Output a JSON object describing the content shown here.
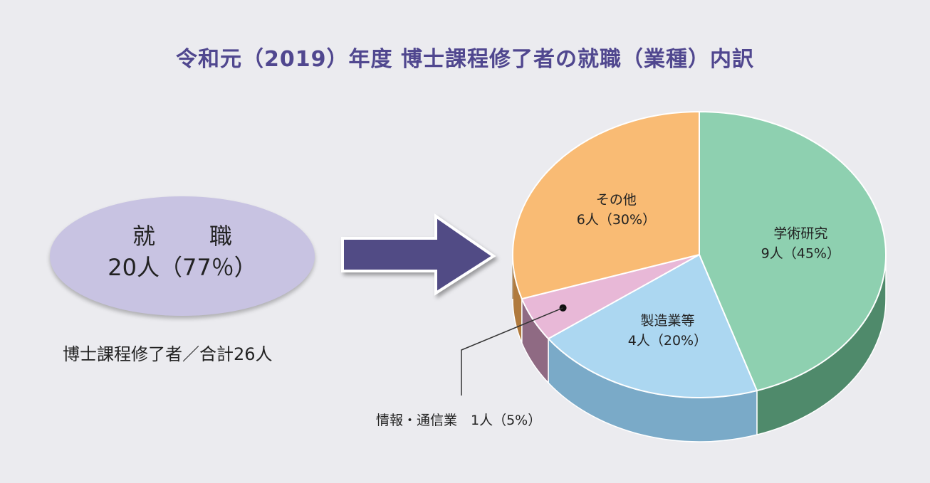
{
  "title": "令和元（2019）年度 博士課程修了者の就職（業種）内訳",
  "employment": {
    "label": "就　職",
    "value": "20人（77％）"
  },
  "total_caption": "博士課程修了者／合計26人",
  "colors": {
    "background": "#ebebef",
    "title": "#50478f",
    "ellipse": "#c8c3e2",
    "arrow": "#514b85"
  },
  "chart_data": {
    "type": "pie",
    "style": "3d",
    "slices": [
      {
        "name": "学術研究",
        "count": 9,
        "percent": 45,
        "label": "9人（45%）",
        "color": "#8ed0b0",
        "side_color": "#4f8a6b"
      },
      {
        "name": "製造業等",
        "count": 4,
        "percent": 20,
        "label": "4人（20%）",
        "color": "#acd7f1",
        "side_color": "#7aaac8"
      },
      {
        "name": "情報・通信業",
        "count": 1,
        "percent": 5,
        "label": "1人（5%）",
        "color": "#e8b8d7",
        "side_color": "#8f6a83"
      },
      {
        "name": "その他",
        "count": 6,
        "percent": 30,
        "label": "6人（30%）",
        "color": "#f9bb74",
        "side_color": "#b07a3e"
      }
    ],
    "callout": "情報・通信業　1人（5%）"
  }
}
